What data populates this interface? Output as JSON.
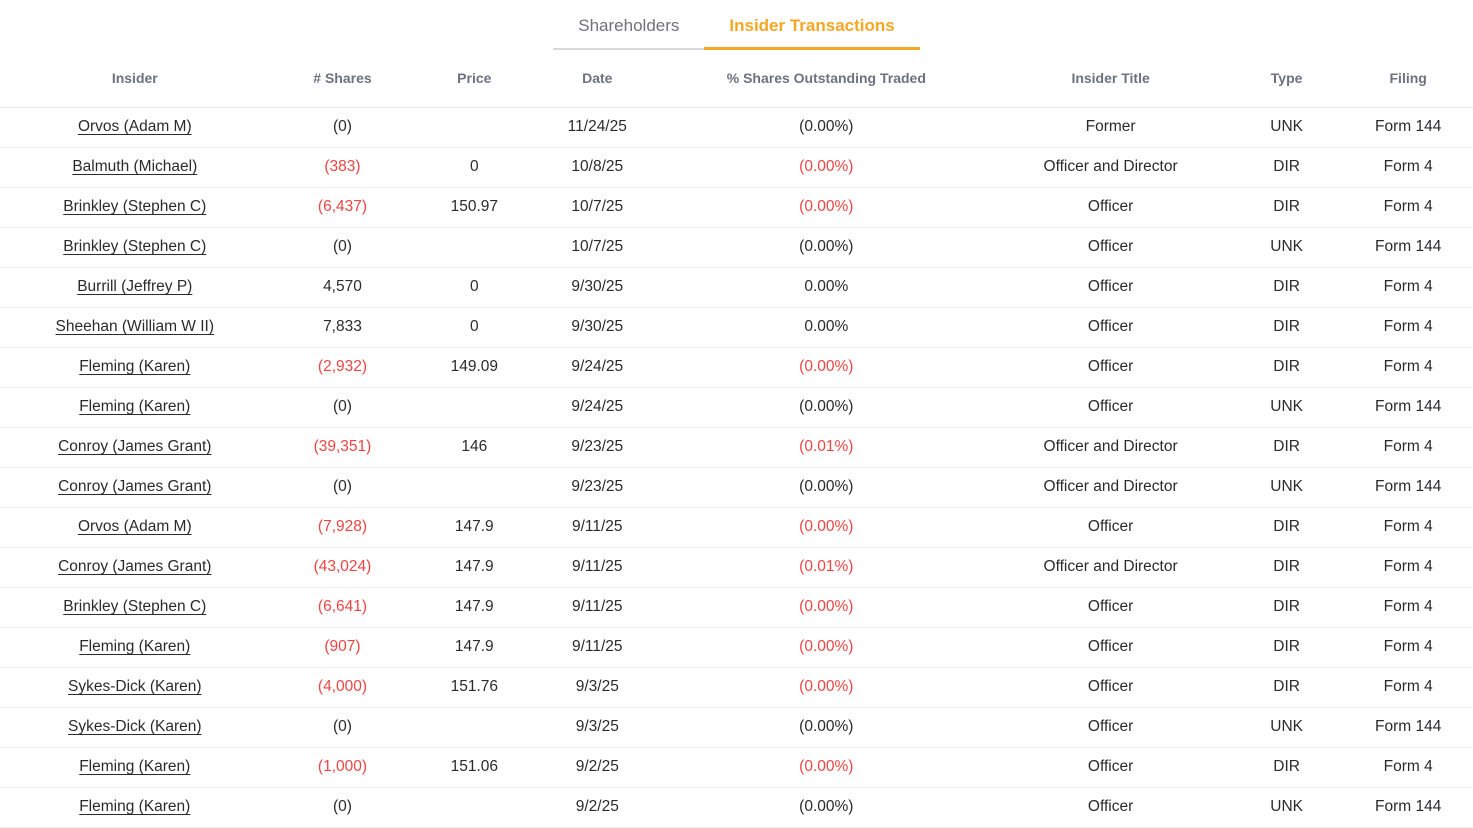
{
  "tabs": [
    {
      "label": "Shareholders",
      "active": false
    },
    {
      "label": "Insider Transactions",
      "active": true
    }
  ],
  "colors": {
    "accent_active_tab": "#f5a623",
    "negative_value": "#ef4444",
    "header_text": "#6b7280"
  },
  "table": {
    "columns": [
      "Insider",
      "# Shares",
      "Price",
      "Date",
      "% Shares Outstanding Traded",
      "Insider Title",
      "Type",
      "Filing"
    ],
    "rows": [
      {
        "insider": "Orvos (Adam M)",
        "shares": "(0)",
        "shares_neg": false,
        "price": "",
        "date": "11/24/25",
        "pct": "(0.00%)",
        "pct_neg": false,
        "title": "Former",
        "type": "UNK",
        "filing": "Form 144"
      },
      {
        "insider": "Balmuth (Michael)",
        "shares": "(383)",
        "shares_neg": true,
        "price": "0",
        "date": "10/8/25",
        "pct": "(0.00%)",
        "pct_neg": true,
        "title": "Officer and Director",
        "type": "DIR",
        "filing": "Form 4"
      },
      {
        "insider": "Brinkley (Stephen C)",
        "shares": "(6,437)",
        "shares_neg": true,
        "price": "150.97",
        "date": "10/7/25",
        "pct": "(0.00%)",
        "pct_neg": true,
        "title": "Officer",
        "type": "DIR",
        "filing": "Form 4"
      },
      {
        "insider": "Brinkley (Stephen C)",
        "shares": "(0)",
        "shares_neg": false,
        "price": "",
        "date": "10/7/25",
        "pct": "(0.00%)",
        "pct_neg": false,
        "title": "Officer",
        "type": "UNK",
        "filing": "Form 144"
      },
      {
        "insider": "Burrill (Jeffrey P)",
        "shares": "4,570",
        "shares_neg": false,
        "price": "0",
        "date": "9/30/25",
        "pct": "0.00%",
        "pct_neg": false,
        "title": "Officer",
        "type": "DIR",
        "filing": "Form 4"
      },
      {
        "insider": "Sheehan (William W II)",
        "shares": "7,833",
        "shares_neg": false,
        "price": "0",
        "date": "9/30/25",
        "pct": "0.00%",
        "pct_neg": false,
        "title": "Officer",
        "type": "DIR",
        "filing": "Form 4"
      },
      {
        "insider": "Fleming (Karen)",
        "shares": "(2,932)",
        "shares_neg": true,
        "price": "149.09",
        "date": "9/24/25",
        "pct": "(0.00%)",
        "pct_neg": true,
        "title": "Officer",
        "type": "DIR",
        "filing": "Form 4"
      },
      {
        "insider": "Fleming (Karen)",
        "shares": "(0)",
        "shares_neg": false,
        "price": "",
        "date": "9/24/25",
        "pct": "(0.00%)",
        "pct_neg": false,
        "title": "Officer",
        "type": "UNK",
        "filing": "Form 144"
      },
      {
        "insider": "Conroy (James Grant)",
        "shares": "(39,351)",
        "shares_neg": true,
        "price": "146",
        "date": "9/23/25",
        "pct": "(0.01%)",
        "pct_neg": true,
        "title": "Officer and Director",
        "type": "DIR",
        "filing": "Form 4"
      },
      {
        "insider": "Conroy (James Grant)",
        "shares": "(0)",
        "shares_neg": false,
        "price": "",
        "date": "9/23/25",
        "pct": "(0.00%)",
        "pct_neg": false,
        "title": "Officer and Director",
        "type": "UNK",
        "filing": "Form 144"
      },
      {
        "insider": "Orvos (Adam M)",
        "shares": "(7,928)",
        "shares_neg": true,
        "price": "147.9",
        "date": "9/11/25",
        "pct": "(0.00%)",
        "pct_neg": true,
        "title": "Officer",
        "type": "DIR",
        "filing": "Form 4"
      },
      {
        "insider": "Conroy (James Grant)",
        "shares": "(43,024)",
        "shares_neg": true,
        "price": "147.9",
        "date": "9/11/25",
        "pct": "(0.01%)",
        "pct_neg": true,
        "title": "Officer and Director",
        "type": "DIR",
        "filing": "Form 4"
      },
      {
        "insider": "Brinkley (Stephen C)",
        "shares": "(6,641)",
        "shares_neg": true,
        "price": "147.9",
        "date": "9/11/25",
        "pct": "(0.00%)",
        "pct_neg": true,
        "title": "Officer",
        "type": "DIR",
        "filing": "Form 4"
      },
      {
        "insider": "Fleming (Karen)",
        "shares": "(907)",
        "shares_neg": true,
        "price": "147.9",
        "date": "9/11/25",
        "pct": "(0.00%)",
        "pct_neg": true,
        "title": "Officer",
        "type": "DIR",
        "filing": "Form 4"
      },
      {
        "insider": "Sykes-Dick (Karen)",
        "shares": "(4,000)",
        "shares_neg": true,
        "price": "151.76",
        "date": "9/3/25",
        "pct": "(0.00%)",
        "pct_neg": true,
        "title": "Officer",
        "type": "DIR",
        "filing": "Form 4"
      },
      {
        "insider": "Sykes-Dick (Karen)",
        "shares": "(0)",
        "shares_neg": false,
        "price": "",
        "date": "9/3/25",
        "pct": "(0.00%)",
        "pct_neg": false,
        "title": "Officer",
        "type": "UNK",
        "filing": "Form 144"
      },
      {
        "insider": "Fleming (Karen)",
        "shares": "(1,000)",
        "shares_neg": true,
        "price": "151.06",
        "date": "9/2/25",
        "pct": "(0.00%)",
        "pct_neg": true,
        "title": "Officer",
        "type": "DIR",
        "filing": "Form 4"
      },
      {
        "insider": "Fleming (Karen)",
        "shares": "(0)",
        "shares_neg": false,
        "price": "",
        "date": "9/2/25",
        "pct": "(0.00%)",
        "pct_neg": false,
        "title": "Officer",
        "type": "UNK",
        "filing": "Form 144"
      }
    ]
  }
}
